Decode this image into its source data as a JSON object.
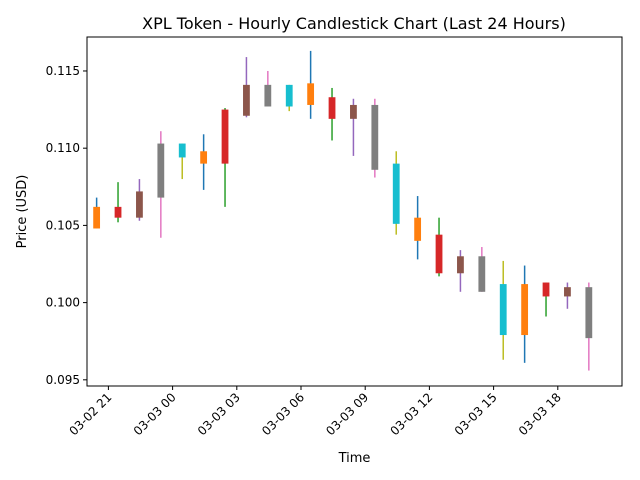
{
  "chart_data": {
    "type": "candlestick",
    "title": "XPL Token - Hourly Candlestick Chart (Last 24 Hours)",
    "xlabel": "Time",
    "ylabel": "Price (USD)",
    "x_ticks": [
      {
        "label": "03-02 21",
        "hour": -2
      },
      {
        "label": "03-03 00",
        "hour": 1
      },
      {
        "label": "03-03 03",
        "hour": 4
      },
      {
        "label": "03-03 06",
        "hour": 7
      },
      {
        "label": "03-03 09",
        "hour": 10
      },
      {
        "label": "03-03 12",
        "hour": 13
      },
      {
        "label": "03-03 15",
        "hour": 16
      },
      {
        "label": "03-03 18",
        "hour": 19
      }
    ],
    "y_ticks": [
      "0.095",
      "0.100",
      "0.105",
      "0.110",
      "0.115"
    ],
    "xlim": [
      -3.0,
      22.0
    ],
    "ylim": [
      0.0946,
      0.1172
    ],
    "grid": false,
    "candles": [
      {
        "hour": -2.55,
        "open": 0.1048,
        "high": 0.1068,
        "low": 0.1048,
        "close": 0.1062,
        "color": "#ff7f0e"
      },
      {
        "hour": -1.55,
        "open": 0.1062,
        "high": 0.1078,
        "low": 0.1052,
        "close": 0.1055,
        "color": "#d62728"
      },
      {
        "hour": -0.55,
        "open": 0.1072,
        "high": 0.108,
        "low": 0.1053,
        "close": 0.1055,
        "color": "#8c564b"
      },
      {
        "hour": 0.45,
        "open": 0.1068,
        "high": 0.1111,
        "low": 0.1042,
        "close": 0.1103,
        "color": "#7f7f7f"
      },
      {
        "hour": 1.45,
        "open": 0.1094,
        "high": 0.1103,
        "low": 0.108,
        "close": 0.1103,
        "color": "#17becf"
      },
      {
        "hour": 2.45,
        "open": 0.109,
        "high": 0.1109,
        "low": 0.1073,
        "close": 0.1098,
        "color": "#ff7f0e"
      },
      {
        "hour": 3.45,
        "open": 0.1125,
        "high": 0.1126,
        "low": 0.1062,
        "close": 0.109,
        "color": "#d62728"
      },
      {
        "hour": 4.45,
        "open": 0.1121,
        "high": 0.1159,
        "low": 0.112,
        "close": 0.1141,
        "color": "#8c564b"
      },
      {
        "hour": 5.45,
        "open": 0.1127,
        "high": 0.115,
        "low": 0.1127,
        "close": 0.1141,
        "color": "#7f7f7f"
      },
      {
        "hour": 6.45,
        "open": 0.1127,
        "high": 0.1141,
        "low": 0.1124,
        "close": 0.1141,
        "color": "#17becf"
      },
      {
        "hour": 7.45,
        "open": 0.1128,
        "high": 0.1163,
        "low": 0.1119,
        "close": 0.1142,
        "color": "#ff7f0e"
      },
      {
        "hour": 8.45,
        "open": 0.1133,
        "high": 0.1139,
        "low": 0.1105,
        "close": 0.1119,
        "color": "#d62728"
      },
      {
        "hour": 9.45,
        "open": 0.1128,
        "high": 0.1132,
        "low": 0.1095,
        "close": 0.1119,
        "color": "#8c564b"
      },
      {
        "hour": 10.45,
        "open": 0.1086,
        "high": 0.1132,
        "low": 0.1081,
        "close": 0.1128,
        "color": "#7f7f7f"
      },
      {
        "hour": 11.45,
        "open": 0.1051,
        "high": 0.1098,
        "low": 0.1044,
        "close": 0.109,
        "color": "#17becf"
      },
      {
        "hour": 12.45,
        "open": 0.1055,
        "high": 0.1069,
        "low": 0.1028,
        "close": 0.104,
        "color": "#ff7f0e"
      },
      {
        "hour": 13.45,
        "open": 0.1044,
        "high": 0.1055,
        "low": 0.1017,
        "close": 0.1019,
        "color": "#d62728"
      },
      {
        "hour": 14.45,
        "open": 0.103,
        "high": 0.1034,
        "low": 0.1007,
        "close": 0.1019,
        "color": "#8c564b"
      },
      {
        "hour": 15.45,
        "open": 0.1007,
        "high": 0.1036,
        "low": 0.1007,
        "close": 0.103,
        "color": "#7f7f7f"
      },
      {
        "hour": 16.45,
        "open": 0.1012,
        "high": 0.1027,
        "low": 0.0963,
        "close": 0.0979,
        "color": "#17becf"
      },
      {
        "hour": 17.45,
        "open": 0.1012,
        "high": 0.1024,
        "low": 0.0961,
        "close": 0.0979,
        "color": "#ff7f0e"
      },
      {
        "hour": 18.45,
        "open": 0.1013,
        "high": 0.1013,
        "low": 0.0991,
        "close": 0.1004,
        "color": "#d62728"
      },
      {
        "hour": 19.45,
        "open": 0.101,
        "high": 0.1013,
        "low": 0.0996,
        "close": 0.1004,
        "color": "#8c564b"
      },
      {
        "hour": 20.45,
        "open": 0.101,
        "high": 0.1013,
        "low": 0.0956,
        "close": 0.0977,
        "color": "#7f7f7f"
      }
    ],
    "wick_colors": [
      "#1f77b4",
      "#2ca02c",
      "#9467bd",
      "#e377c2",
      "#bcbd22",
      "#1f77b4",
      "#2ca02c",
      "#9467bd",
      "#e377c2",
      "#bcbd22",
      "#1f77b4",
      "#2ca02c",
      "#9467bd",
      "#e377c2",
      "#bcbd22",
      "#1f77b4",
      "#2ca02c",
      "#9467bd",
      "#e377c2",
      "#bcbd22",
      "#1f77b4",
      "#2ca02c",
      "#9467bd",
      "#e377c2"
    ]
  }
}
